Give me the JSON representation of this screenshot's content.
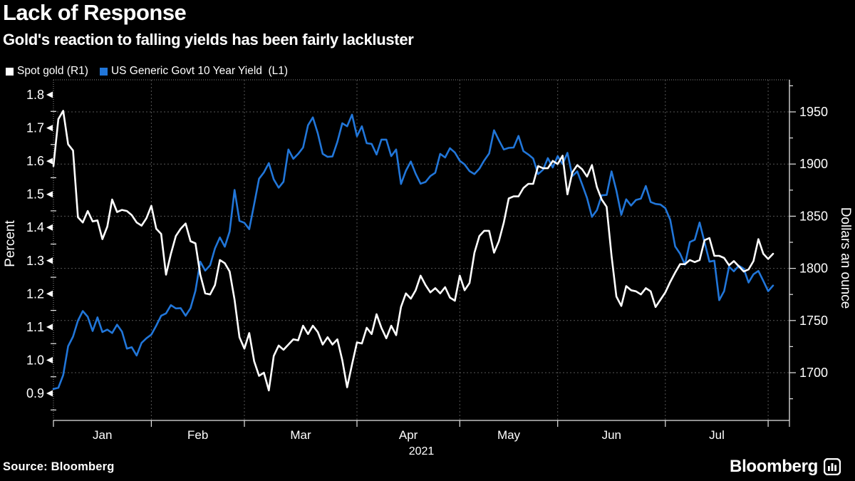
{
  "header": {
    "title": "Lack of Response",
    "subtitle": "Gold's reaction to falling yields has been fairly lackluster"
  },
  "legend": {
    "items": [
      {
        "label": "Spot gold (R1)",
        "color": "#ffffff",
        "axis": "right"
      },
      {
        "label": "US Generic Govt 10 Year Yield  (L1)",
        "color": "#2176d9",
        "axis": "left"
      }
    ]
  },
  "footer": {
    "source": "Source: Bloomberg",
    "logo_text": "Bloomberg"
  },
  "chart_data": {
    "type": "line",
    "title": "Lack of Response",
    "subtitle": "Gold's reaction to falling yields has been fairly lackluster",
    "x_span": "business days, Dec 31 2020 - Aug 3 2021",
    "x_tick_labels": [
      "Jan",
      "Feb",
      "Mar",
      "Apr",
      "May",
      "Jun",
      "Jul"
    ],
    "x_year_label": "2021",
    "month_start_indices": [
      20,
      39,
      62,
      83,
      103,
      125,
      146
    ],
    "month_label_indices": [
      10,
      29.5,
      50.5,
      72.5,
      93,
      114,
      135.5
    ],
    "left_axis": {
      "label": "Percent",
      "ticks": [
        0.9,
        1.0,
        1.1,
        1.2,
        1.3,
        1.4,
        1.5,
        1.6,
        1.7,
        1.8
      ],
      "minor_step": 0.05,
      "range": [
        0.9,
        1.8
      ]
    },
    "right_axis": {
      "label": "Dollars an ounce",
      "ticks": [
        1700,
        1750,
        1800,
        1850,
        1900,
        1950
      ],
      "minor_step": 25,
      "range": [
        1700,
        1950
      ]
    },
    "grid": true,
    "legend_position": "top-left",
    "background": "#000000",
    "grid_color": "#565656",
    "series": [
      {
        "name": "Spot gold (R1)",
        "axis": "right",
        "color": "#ffffff",
        "values": [
          1898,
          1943,
          1951,
          1919,
          1913,
          1849,
          1844,
          1855,
          1845,
          1846,
          1828,
          1840,
          1866,
          1854,
          1856,
          1855,
          1851,
          1844,
          1841,
          1848,
          1860,
          1838,
          1833,
          1794,
          1814,
          1831,
          1838,
          1843,
          1826,
          1824,
          1794,
          1776,
          1775,
          1784,
          1808,
          1805,
          1797,
          1770,
          1734,
          1723,
          1738,
          1711,
          1697,
          1700,
          1683,
          1716,
          1726,
          1722,
          1727,
          1732,
          1731,
          1745,
          1737,
          1745,
          1739,
          1727,
          1734,
          1727,
          1732,
          1712,
          1686,
          1708,
          1729,
          1728,
          1743,
          1737,
          1756,
          1743,
          1733,
          1745,
          1736,
          1763,
          1776,
          1771,
          1779,
          1793,
          1784,
          1777,
          1781,
          1776,
          1782,
          1772,
          1769,
          1793,
          1779,
          1786,
          1815,
          1831,
          1836,
          1836,
          1815,
          1826,
          1844,
          1867,
          1869,
          1869,
          1877,
          1881,
          1881,
          1898,
          1896,
          1896,
          1903,
          1900,
          1908,
          1871,
          1892,
          1899,
          1895,
          1888,
          1899,
          1878,
          1866,
          1859,
          1812,
          1773,
          1764,
          1783,
          1779,
          1778,
          1775,
          1781,
          1778,
          1763,
          1770,
          1777,
          1787,
          1796,
          1804,
          1804,
          1808,
          1806,
          1808,
          1827,
          1829,
          1812,
          1812,
          1810,
          1803,
          1807,
          1802,
          1797,
          1799,
          1807,
          1828,
          1814,
          1809,
          1814
        ]
      },
      {
        "name": "US Generic Govt 10 Year Yield  (L1)",
        "axis": "left",
        "color": "#2176d9",
        "values": [
          0.913,
          0.917,
          0.955,
          1.042,
          1.071,
          1.119,
          1.148,
          1.131,
          1.088,
          1.129,
          1.085,
          1.092,
          1.082,
          1.107,
          1.086,
          1.035,
          1.039,
          1.014,
          1.052,
          1.066,
          1.077,
          1.104,
          1.134,
          1.141,
          1.166,
          1.156,
          1.157,
          1.134,
          1.157,
          1.209,
          1.297,
          1.27,
          1.286,
          1.337,
          1.37,
          1.342,
          1.388,
          1.513,
          1.42,
          1.414,
          1.395,
          1.47,
          1.547,
          1.566,
          1.594,
          1.545,
          1.52,
          1.538,
          1.635,
          1.607,
          1.622,
          1.641,
          1.708,
          1.732,
          1.684,
          1.622,
          1.613,
          1.614,
          1.658,
          1.714,
          1.705,
          1.74,
          1.675,
          1.705,
          1.654,
          1.652,
          1.62,
          1.665,
          1.665,
          1.615,
          1.635,
          1.531,
          1.571,
          1.599,
          1.562,
          1.532,
          1.537,
          1.555,
          1.565,
          1.622,
          1.611,
          1.639,
          1.626,
          1.601,
          1.59,
          1.57,
          1.561,
          1.577,
          1.602,
          1.623,
          1.693,
          1.663,
          1.635,
          1.64,
          1.641,
          1.676,
          1.63,
          1.62,
          1.608,
          1.561,
          1.574,
          1.609,
          1.581,
          1.615,
          1.591,
          1.625,
          1.555,
          1.569,
          1.53,
          1.489,
          1.432,
          1.452,
          1.497,
          1.498,
          1.569,
          1.511,
          1.438,
          1.485,
          1.466,
          1.483,
          1.487,
          1.525,
          1.477,
          1.471,
          1.469,
          1.458,
          1.423,
          1.343,
          1.321,
          1.288,
          1.356,
          1.363,
          1.415,
          1.356,
          1.297,
          1.3,
          1.181,
          1.208,
          1.282,
          1.268,
          1.285,
          1.276,
          1.234,
          1.259,
          1.269,
          1.239,
          1.208,
          1.225
        ]
      }
    ]
  }
}
